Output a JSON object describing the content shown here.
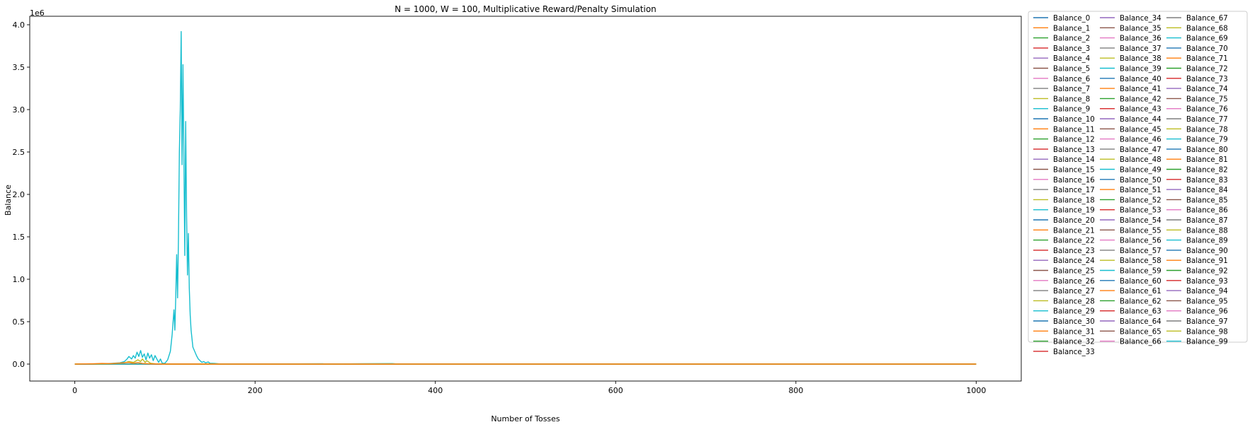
{
  "chart_data": {
    "type": "line",
    "title": "N = 1000, W = 100, Multiplicative Reward/Penalty Simulation",
    "xlabel": "Number of Tosses",
    "ylabel": "Balance",
    "y_offset_label": "1e6",
    "xlim": [
      -50,
      1050
    ],
    "ylim": [
      -0.2,
      4.1
    ],
    "x_ticks": [
      0,
      200,
      400,
      600,
      800,
      1000
    ],
    "y_ticks": [
      0.0,
      0.5,
      1.0,
      1.5,
      2.0,
      2.5,
      3.0,
      3.5,
      4.0
    ],
    "x_tick_labels": [
      "0",
      "200",
      "400",
      "600",
      "800",
      "1000"
    ],
    "y_tick_labels": [
      "0.0",
      "0.5",
      "1.0",
      "1.5",
      "2.0",
      "2.5",
      "3.0",
      "3.5",
      "4.0"
    ],
    "grid": false,
    "legend_position": "outside-right",
    "legend_columns": 3,
    "palette": [
      "#1f77b4",
      "#ff7f0e",
      "#2ca02c",
      "#d62728",
      "#9467bd",
      "#8c564b",
      "#e377c2",
      "#7f7f7f",
      "#bcbd22",
      "#17becf"
    ],
    "series_count": 100,
    "series_name_prefix": "Balance_",
    "baseline_value": 0.0,
    "x_range": [
      0,
      1000
    ],
    "highlighted_series": [
      {
        "name": "Balance_99",
        "color": "#17becf",
        "points": [
          [
            0,
            0
          ],
          [
            30,
            0.003
          ],
          [
            40,
            0.008
          ],
          [
            50,
            0.015
          ],
          [
            55,
            0.03
          ],
          [
            58,
            0.06
          ],
          [
            60,
            0.09
          ],
          [
            63,
            0.06
          ],
          [
            65,
            0.1
          ],
          [
            67,
            0.07
          ],
          [
            69,
            0.14
          ],
          [
            71,
            0.09
          ],
          [
            73,
            0.16
          ],
          [
            75,
            0.08
          ],
          [
            77,
            0.12
          ],
          [
            79,
            0.05
          ],
          [
            81,
            0.13
          ],
          [
            83,
            0.07
          ],
          [
            85,
            0.11
          ],
          [
            87,
            0.04
          ],
          [
            89,
            0.1
          ],
          [
            91,
            0.06
          ],
          [
            93,
            0.02
          ],
          [
            95,
            0.06
          ],
          [
            97,
            0.01
          ],
          [
            100,
            0.01
          ],
          [
            103,
            0.05
          ],
          [
            106,
            0.15
          ],
          [
            108,
            0.35
          ],
          [
            110,
            0.64
          ],
          [
            111,
            0.4
          ],
          [
            112,
            0.8
          ],
          [
            113,
            1.29
          ],
          [
            114,
            0.78
          ],
          [
            115,
            1.5
          ],
          [
            116,
            2.5
          ],
          [
            117,
            3.0
          ],
          [
            118,
            3.92
          ],
          [
            119,
            2.35
          ],
          [
            120,
            3.53
          ],
          [
            121,
            2.45
          ],
          [
            122,
            1.28
          ],
          [
            123,
            2.86
          ],
          [
            124,
            1.75
          ],
          [
            125,
            1.05
          ],
          [
            126,
            1.54
          ],
          [
            127,
            0.9
          ],
          [
            128,
            0.58
          ],
          [
            129,
            0.4
          ],
          [
            131,
            0.2
          ],
          [
            133,
            0.15
          ],
          [
            135,
            0.1
          ],
          [
            137,
            0.06
          ],
          [
            139,
            0.04
          ],
          [
            141,
            0.02
          ],
          [
            143,
            0.03
          ],
          [
            145,
            0.015
          ],
          [
            148,
            0.025
          ],
          [
            150,
            0.01
          ],
          [
            155,
            0.008
          ],
          [
            160,
            0.003
          ],
          [
            170,
            0.001
          ],
          [
            200,
            0.0005
          ],
          [
            275,
            0.004
          ],
          [
            278,
            0.0
          ],
          [
            352,
            0.006
          ],
          [
            356,
            0.003
          ],
          [
            360,
            0.0
          ],
          [
            1000,
            0
          ]
        ]
      },
      {
        "name": "Balance_98",
        "color": "#bcbd22",
        "points": [
          [
            0,
            0
          ],
          [
            40,
            0.005
          ],
          [
            55,
            0.015
          ],
          [
            60,
            0.03
          ],
          [
            65,
            0.02
          ],
          [
            70,
            0.05
          ],
          [
            73,
            0.03
          ],
          [
            75,
            0.06
          ],
          [
            78,
            0.02
          ],
          [
            80,
            0.04
          ],
          [
            84,
            0.01
          ],
          [
            90,
            0.003
          ],
          [
            100,
            0
          ],
          [
            1000,
            0
          ]
        ]
      },
      {
        "name": "Balance_1",
        "color": "#ff7f0e",
        "points": [
          [
            0,
            0
          ],
          [
            20,
            0.004
          ],
          [
            30,
            0.008
          ],
          [
            40,
            0.006
          ],
          [
            50,
            0.012
          ],
          [
            60,
            0.02
          ],
          [
            65,
            0.01
          ],
          [
            70,
            0.018
          ],
          [
            75,
            0.008
          ],
          [
            85,
            0.003
          ],
          [
            100,
            0
          ],
          [
            1000,
            0
          ]
        ]
      }
    ],
    "legend_entries": [
      "Balance_0",
      "Balance_1",
      "Balance_2",
      "Balance_3",
      "Balance_4",
      "Balance_5",
      "Balance_6",
      "Balance_7",
      "Balance_8",
      "Balance_9",
      "Balance_10",
      "Balance_11",
      "Balance_12",
      "Balance_13",
      "Balance_14",
      "Balance_15",
      "Balance_16",
      "Balance_17",
      "Balance_18",
      "Balance_19",
      "Balance_20",
      "Balance_21",
      "Balance_22",
      "Balance_23",
      "Balance_24",
      "Balance_25",
      "Balance_26",
      "Balance_27",
      "Balance_28",
      "Balance_29",
      "Balance_30",
      "Balance_31",
      "Balance_32",
      "Balance_33",
      "Balance_34",
      "Balance_35",
      "Balance_36",
      "Balance_37",
      "Balance_38",
      "Balance_39",
      "Balance_40",
      "Balance_41",
      "Balance_42",
      "Balance_43",
      "Balance_44",
      "Balance_45",
      "Balance_46",
      "Balance_47",
      "Balance_48",
      "Balance_49",
      "Balance_50",
      "Balance_51",
      "Balance_52",
      "Balance_53",
      "Balance_54",
      "Balance_55",
      "Balance_56",
      "Balance_57",
      "Balance_58",
      "Balance_59",
      "Balance_60",
      "Balance_61",
      "Balance_62",
      "Balance_63",
      "Balance_64",
      "Balance_65",
      "Balance_66",
      "Balance_67",
      "Balance_68",
      "Balance_69",
      "Balance_70",
      "Balance_71",
      "Balance_72",
      "Balance_73",
      "Balance_74",
      "Balance_75",
      "Balance_76",
      "Balance_77",
      "Balance_78",
      "Balance_79",
      "Balance_80",
      "Balance_81",
      "Balance_82",
      "Balance_83",
      "Balance_84",
      "Balance_85",
      "Balance_86",
      "Balance_87",
      "Balance_88",
      "Balance_89",
      "Balance_90",
      "Balance_91",
      "Balance_92",
      "Balance_93",
      "Balance_94",
      "Balance_95",
      "Balance_96",
      "Balance_97",
      "Balance_98",
      "Balance_99"
    ]
  }
}
